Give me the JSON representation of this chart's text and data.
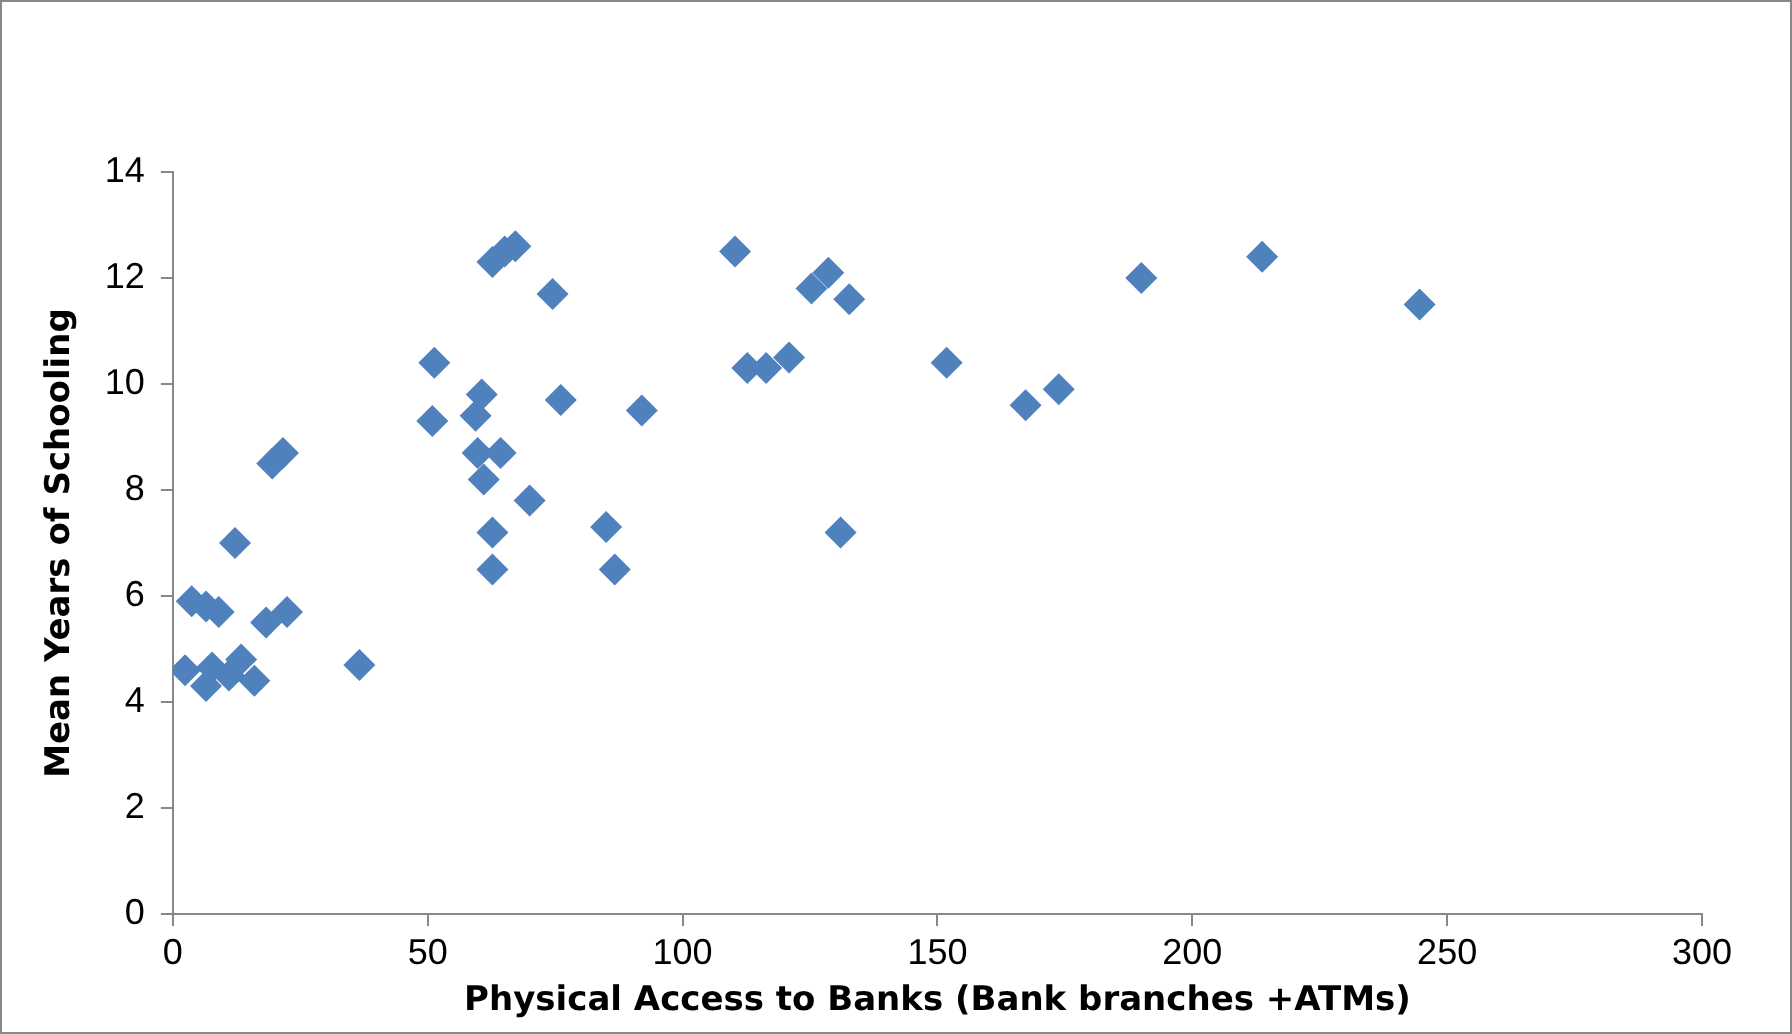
{
  "chart_data": {
    "type": "scatter",
    "xlabel": "Physical Access to Banks (Bank branches +ATMs)",
    "ylabel": "Mean Years of Schooling",
    "marker": "diamond",
    "grid": false,
    "legend": false,
    "xlim": [
      0,
      300
    ],
    "xticks": [
      0,
      50,
      100,
      150,
      200,
      250,
      300
    ],
    "ylim": [
      0,
      14
    ],
    "yticks": [
      0,
      2,
      4,
      6,
      8,
      10,
      12,
      14
    ],
    "series": [
      {
        "color": "#4f81bd",
        "x": [
          2.4,
          3.7,
          6.5,
          9,
          7.7,
          6.5,
          11,
          13.4,
          16,
          12.2,
          18.3,
          22.4,
          19.5,
          21.6,
          36.6,
          51.3,
          50.9,
          59.4,
          60.6,
          59.8,
          61,
          64.3,
          62.7,
          62.7,
          62.7,
          65.1,
          67.2,
          74.5,
          76.1,
          70,
          85,
          86.7,
          92,
          110.3,
          112.7,
          116.4,
          120.9,
          125.3,
          128.6,
          132.7,
          131,
          151.8,
          167.3,
          173.8,
          190,
          213.7,
          244.6
        ],
        "values": [
          4.6,
          5.9,
          5.8,
          5.7,
          4.65,
          4.3,
          4.5,
          4.8,
          4.4,
          7.0,
          5.5,
          5.7,
          8.5,
          8.7,
          4.7,
          10.4,
          9.3,
          9.4,
          9.8,
          8.7,
          8.2,
          8.7,
          7.2,
          6.5,
          12.3,
          12.5,
          12.6,
          11.7,
          9.7,
          7.8,
          7.3,
          6.5,
          9.5,
          12.5,
          10.3,
          10.3,
          10.5,
          11.8,
          12.1,
          11.6,
          7.2,
          10.4,
          9.6,
          9.9,
          12.0,
          12.4,
          11.5
        ]
      }
    ]
  }
}
